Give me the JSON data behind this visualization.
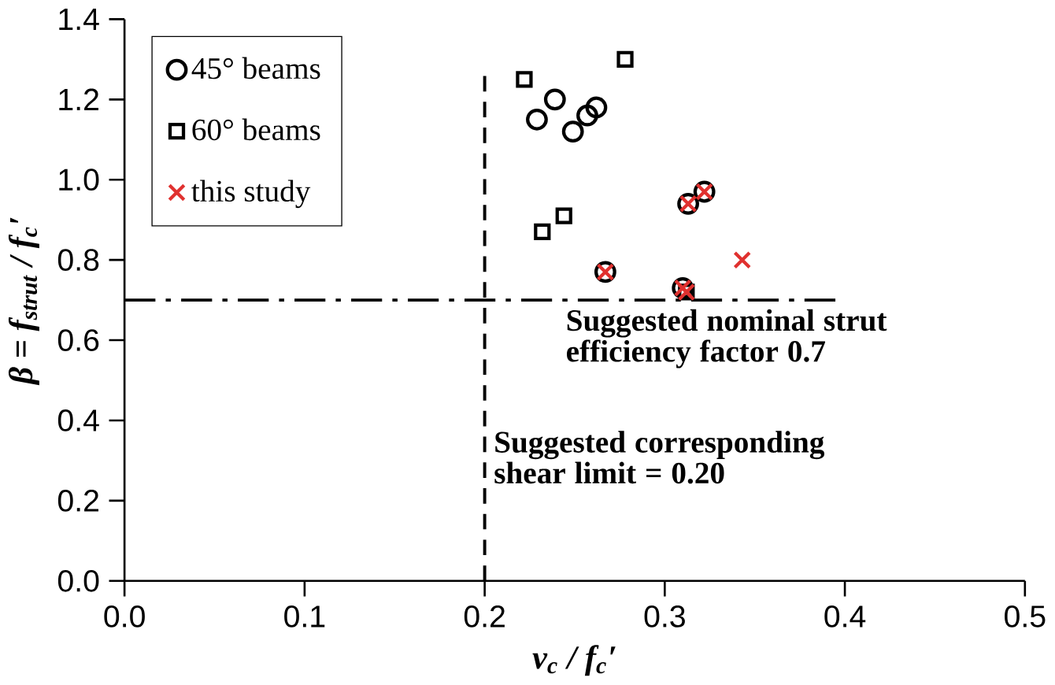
{
  "chart_data": {
    "type": "scatter",
    "xlabel": "v$_{c}$ / f$_{c}$′",
    "ylabel": "β = f$_{strut}$ / f$_{c}$′",
    "series": [
      {
        "name": "45° beams",
        "color": "#000000",
        "marker": "circle",
        "x": [
          0.239,
          0.229,
          0.249,
          0.257,
          0.262,
          0.267,
          0.313,
          0.322,
          0.31
        ],
        "values": [
          1.2,
          1.15,
          1.12,
          1.16,
          1.18,
          0.77,
          0.94,
          0.97,
          0.73
        ]
      },
      {
        "name": "60° beams",
        "color": "#000000",
        "marker": "square",
        "x": [
          0.278,
          0.222,
          0.244,
          0.232,
          0.312
        ],
        "values": [
          1.3,
          1.25,
          0.91,
          0.87,
          0.72
        ]
      },
      {
        "name": "this study",
        "color": "#e0312f",
        "marker": "cross",
        "x": [
          0.267,
          0.313,
          0.322,
          0.31,
          0.312,
          0.343
        ],
        "values": [
          0.77,
          0.94,
          0.97,
          0.73,
          0.72,
          0.8
        ]
      }
    ],
    "xlim": [
      0,
      0.5
    ],
    "ylim": [
      0,
      1.4
    ],
    "xticks": [
      {
        "value": 0,
        "label": "0.0"
      },
      0.1,
      0.2,
      0.3,
      0.4,
      0.5
    ],
    "yticks": [
      {
        "value": 0,
        "label": "0.0"
      },
      0.2,
      0.4,
      0.6,
      0.8,
      {
        "value": 1,
        "label": "1.0"
      },
      1.2,
      1.4
    ],
    "legend": "top left",
    "grid": false,
    "ref_lines": [
      {
        "axis": "y",
        "value": 0.7,
        "label": "Suggested nominal strut efficiency factor 0.7",
        "line_style": "dashdot"
      },
      {
        "axis": "x",
        "value": 0.2,
        "label": "Suggested corresponding shear limit = 0.20",
        "line_style": "dashed"
      }
    ]
  }
}
